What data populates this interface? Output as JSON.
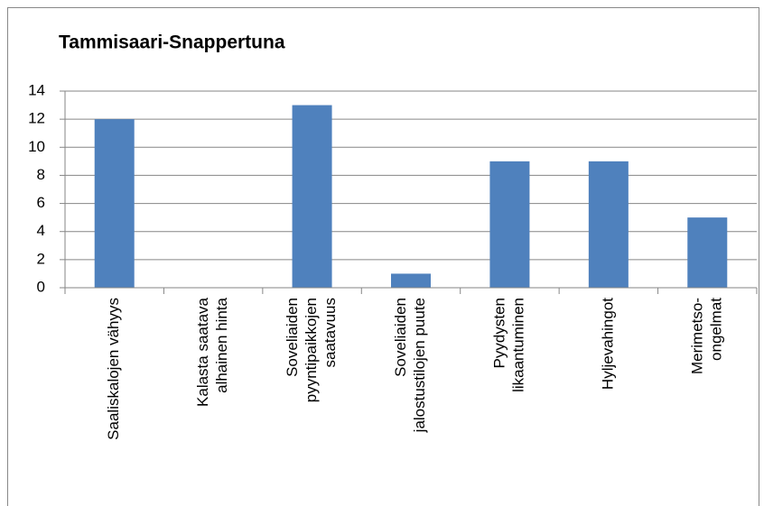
{
  "chart_data": {
    "type": "bar",
    "title": "Tammisaari-Snappertuna",
    "categories": [
      [
        "Saaliskalojen vähyys"
      ],
      [
        "Kalasta saatava",
        "alhainen hinta"
      ],
      [
        "Soveliaiden",
        "pyyntipaikkojen",
        "saatavuus"
      ],
      [
        "Soveliaiden",
        "jalostustilojen puute"
      ],
      [
        "Pyydysten",
        "likaantuminen"
      ],
      [
        "Hyljevahingot"
      ],
      [
        "Merimetso-",
        "ongelmat"
      ]
    ],
    "values": [
      12,
      0,
      13,
      1,
      9,
      9,
      5
    ],
    "color": "#4f81bd",
    "ylim": [
      0,
      14
    ],
    "yticks": [
      0,
      2,
      4,
      6,
      8,
      10,
      12,
      14
    ],
    "grid": true
  }
}
